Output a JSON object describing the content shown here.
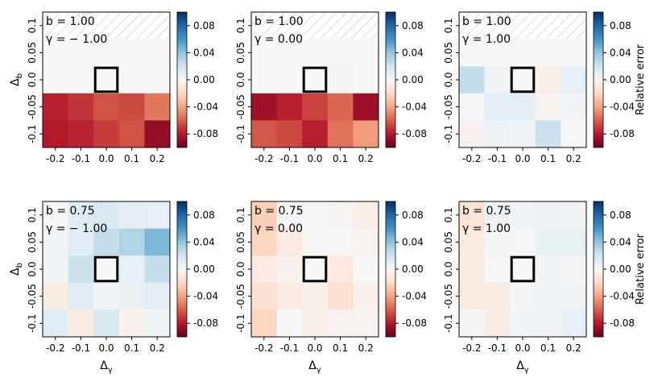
{
  "chart_data": {
    "type": "heatmap",
    "colorbar": {
      "label": "Relative error",
      "range": [
        -0.1,
        0.1
      ],
      "ticks": [
        0.08,
        0.04,
        0.0,
        -0.04,
        -0.08
      ],
      "tick_labels": [
        "0.08",
        "0.04",
        "0.00",
        "-0.04",
        "-0.08"
      ],
      "colormap": "RdBu"
    },
    "x_tick_labels": [
      "-0.2",
      "-0.1",
      "0.0",
      "0.1",
      "0.2"
    ],
    "y_tick_labels": [
      "0.1",
      "0.05",
      "0.0",
      "-0.05",
      "-0.1"
    ],
    "xlabel": "Δγ",
    "ylabel": "Δb",
    "hatch_color": "#c8c8c8",
    "highlight_cell": {
      "row": 2,
      "col": 2
    },
    "panels": [
      {
        "id": "b100-gm100",
        "annotation": [
          "b = 1.00",
          "γ = − 1.00"
        ],
        "values": [
          [
            null,
            null,
            null,
            null,
            null
          ],
          [
            0.0,
            0.0,
            0.0,
            0.0,
            0.0
          ],
          [
            0.0,
            0.0,
            0.0,
            0.001,
            0.0
          ],
          [
            -0.078,
            -0.072,
            -0.064,
            -0.066,
            -0.053
          ],
          [
            -0.08,
            -0.077,
            -0.07,
            -0.064,
            -0.088
          ]
        ]
      },
      {
        "id": "b100-g000",
        "annotation": [
          "b = 1.00",
          "γ = 0.00"
        ],
        "values": [
          [
            null,
            null,
            null,
            null,
            null
          ],
          [
            0.0,
            0.0,
            0.0,
            0.0,
            0.0
          ],
          [
            0.0,
            0.0,
            0.0,
            0.002,
            0.0
          ],
          [
            -0.085,
            -0.078,
            -0.068,
            -0.058,
            -0.086
          ],
          [
            -0.062,
            -0.066,
            -0.078,
            -0.055,
            -0.043
          ]
        ]
      },
      {
        "id": "b100-g100",
        "annotation": [
          "b = 1.00",
          "γ = 1.00"
        ],
        "values": [
          [
            null,
            null,
            null,
            null,
            null
          ],
          [
            0.0,
            0.0,
            0.0,
            0.0,
            0.0
          ],
          [
            0.024,
            0.004,
            0.0,
            -0.006,
            0.009
          ],
          [
            0.001,
            0.01,
            0.01,
            -0.003,
            0.003
          ],
          [
            -0.004,
            0.006,
            0.003,
            0.022,
            0.0
          ]
        ]
      },
      {
        "id": "b075-gm100",
        "annotation": [
          "b = 0.75",
          "γ = − 1.00"
        ],
        "values": [
          [
            0.0,
            0.012,
            0.016,
            0.01,
            0.009
          ],
          [
            0.003,
            0.012,
            0.024,
            0.03,
            0.045
          ],
          [
            0.005,
            0.022,
            0.0,
            0.009,
            0.024
          ],
          [
            -0.008,
            0.012,
            0.004,
            0.008,
            0.01
          ],
          [
            0.012,
            -0.008,
            0.016,
            -0.005,
            0.005
          ]
        ]
      },
      {
        "id": "b075-g000",
        "annotation": [
          "b = 0.75",
          "γ = 0.00"
        ],
        "values": [
          [
            -0.024,
            0.0,
            0.0,
            -0.002,
            -0.006
          ],
          [
            -0.022,
            -0.01,
            0.0,
            0.0,
            -0.003
          ],
          [
            -0.009,
            -0.004,
            0.0,
            -0.01,
            0.0
          ],
          [
            -0.015,
            -0.009,
            -0.006,
            -0.016,
            -0.005
          ],
          [
            -0.022,
            0.0,
            -0.006,
            -0.003,
            -0.003
          ]
        ]
      },
      {
        "id": "b075-g100",
        "annotation": [
          "b = 0.75",
          "γ = 1.00"
        ],
        "values": [
          [
            -0.014,
            0.003,
            0.003,
            0.006,
            0.004
          ],
          [
            -0.01,
            0.002,
            0.001,
            0.007,
            0.008
          ],
          [
            -0.008,
            0.0,
            0.0,
            0.003,
            0.002
          ],
          [
            -0.01,
            -0.008,
            0.002,
            0.003,
            0.004
          ],
          [
            0.002,
            -0.008,
            0.003,
            0.004,
            0.009
          ]
        ]
      }
    ]
  }
}
